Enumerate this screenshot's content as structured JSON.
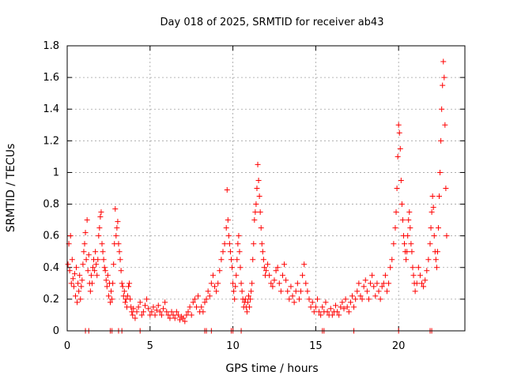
{
  "chart_data": {
    "type": "scatter",
    "title": "Day 018 of 2025, SRMTID for receiver ab43",
    "xlabel": "GPS time / hours",
    "ylabel": "SRMTID / TECUs",
    "xlim": [
      0,
      24
    ],
    "ylim": [
      0,
      1.8
    ],
    "xticks": [
      0,
      5,
      10,
      15,
      20
    ],
    "xtick_labels": [
      "0",
      "5",
      "10",
      "15",
      "20"
    ],
    "yticks": [
      0,
      0.2,
      0.4,
      0.6,
      0.8,
      1.0,
      1.2,
      1.4,
      1.6,
      1.8
    ],
    "ytick_labels": [
      "0",
      "0.2",
      "0.4",
      "0.6",
      "0.8",
      "1",
      "1.2",
      "1.4",
      "1.6",
      "1.8"
    ],
    "grid": true,
    "marker": "plus",
    "marker_color": "#ff0000",
    "series": [
      {
        "name": "SRMTID",
        "points": [
          [
            0.05,
            0.42
          ],
          [
            0.1,
            0.55
          ],
          [
            0.15,
            0.38
          ],
          [
            0.2,
            0.6
          ],
          [
            0.25,
            0.3
          ],
          [
            0.3,
            0.45
          ],
          [
            0.35,
            0.33
          ],
          [
            0.4,
            0.28
          ],
          [
            0.45,
            0.36
          ],
          [
            0.5,
            0.22
          ],
          [
            0.55,
            0.4
          ],
          [
            0.6,
            0.18
          ],
          [
            0.65,
            0.3
          ],
          [
            0.7,
            0.25
          ],
          [
            0.75,
            0.35
          ],
          [
            0.8,
            0.2
          ],
          [
            0.85,
            0.28
          ],
          [
            0.9,
            0.32
          ],
          [
            0.95,
            0.42
          ],
          [
            1.0,
            0.5
          ],
          [
            1.05,
            0.55
          ],
          [
            1.1,
            0.62
          ],
          [
            1.15,
            0.45
          ],
          [
            1.2,
            0.7
          ],
          [
            1.25,
            0.38
          ],
          [
            1.3,
            0.48
          ],
          [
            1.35,
            0.3
          ],
          [
            1.4,
            0.25
          ],
          [
            1.45,
            0.35
          ],
          [
            1.5,
            0.3
          ],
          [
            1.55,
            0.4
          ],
          [
            1.6,
            0.45
          ],
          [
            1.65,
            0.38
          ],
          [
            1.7,
            0.5
          ],
          [
            1.75,
            0.42
          ],
          [
            1.8,
            0.35
          ],
          [
            1.85,
            0.45
          ],
          [
            1.9,
            0.6
          ],
          [
            1.95,
            0.65
          ],
          [
            2.0,
            0.72
          ],
          [
            2.05,
            0.75
          ],
          [
            2.1,
            0.55
          ],
          [
            2.15,
            0.5
          ],
          [
            2.2,
            0.45
          ],
          [
            2.25,
            0.4
          ],
          [
            2.3,
            0.38
          ],
          [
            2.35,
            0.32
          ],
          [
            2.4,
            0.28
          ],
          [
            2.45,
            0.35
          ],
          [
            2.5,
            0.22
          ],
          [
            2.55,
            0.3
          ],
          [
            2.6,
            0.18
          ],
          [
            2.65,
            0.25
          ],
          [
            2.7,
            0.2
          ],
          [
            2.75,
            0.3
          ],
          [
            2.8,
            0.42
          ],
          [
            2.85,
            0.55
          ],
          [
            2.9,
            0.77
          ],
          [
            2.95,
            0.6
          ],
          [
            3.0,
            0.65
          ],
          [
            3.05,
            0.69
          ],
          [
            3.1,
            0.55
          ],
          [
            3.15,
            0.5
          ],
          [
            3.2,
            0.45
          ],
          [
            3.25,
            0.38
          ],
          [
            3.3,
            0.3
          ],
          [
            3.35,
            0.28
          ],
          [
            3.4,
            0.22
          ],
          [
            3.45,
            0.25
          ],
          [
            3.5,
            0.18
          ],
          [
            3.55,
            0.2
          ],
          [
            3.6,
            0.15
          ],
          [
            3.65,
            0.22
          ],
          [
            3.7,
            0.28
          ],
          [
            3.75,
            0.3
          ],
          [
            3.8,
            0.2
          ],
          [
            3.85,
            0.15
          ],
          [
            3.9,
            0.12
          ],
          [
            3.95,
            0.1
          ],
          [
            4.0,
            0.14
          ],
          [
            4.1,
            0.08
          ],
          [
            4.2,
            0.12
          ],
          [
            4.3,
            0.15
          ],
          [
            4.4,
            0.18
          ],
          [
            4.5,
            0.1
          ],
          [
            4.6,
            0.12
          ],
          [
            4.7,
            0.16
          ],
          [
            4.8,
            0.2
          ],
          [
            4.9,
            0.14
          ],
          [
            5.0,
            0.1
          ],
          [
            5.1,
            0.12
          ],
          [
            5.2,
            0.15
          ],
          [
            5.3,
            0.1
          ],
          [
            5.4,
            0.13
          ],
          [
            5.5,
            0.16
          ],
          [
            5.6,
            0.12
          ],
          [
            5.7,
            0.1
          ],
          [
            5.8,
            0.14
          ],
          [
            5.9,
            0.18
          ],
          [
            6.0,
            0.12
          ],
          [
            6.1,
            0.1
          ],
          [
            6.2,
            0.08
          ],
          [
            6.3,
            0.12
          ],
          [
            6.4,
            0.1
          ],
          [
            6.5,
            0.08
          ],
          [
            6.6,
            0.12
          ],
          [
            6.7,
            0.1
          ],
          [
            6.8,
            0.07
          ],
          [
            6.9,
            0.09
          ],
          [
            7.0,
            0.08
          ],
          [
            7.1,
            0.06
          ],
          [
            7.2,
            0.1
          ],
          [
            7.3,
            0.12
          ],
          [
            7.4,
            0.15
          ],
          [
            7.5,
            0.1
          ],
          [
            7.6,
            0.18
          ],
          [
            7.7,
            0.2
          ],
          [
            7.8,
            0.15
          ],
          [
            7.9,
            0.22
          ],
          [
            8.0,
            0.12
          ],
          [
            8.1,
            0.15
          ],
          [
            8.2,
            0.12
          ],
          [
            8.3,
            0.18
          ],
          [
            8.4,
            0.2
          ],
          [
            8.5,
            0.25
          ],
          [
            8.6,
            0.22
          ],
          [
            8.7,
            0.3
          ],
          [
            8.8,
            0.35
          ],
          [
            8.9,
            0.28
          ],
          [
            9.0,
            0.25
          ],
          [
            9.1,
            0.3
          ],
          [
            9.2,
            0.38
          ],
          [
            9.3,
            0.45
          ],
          [
            9.4,
            0.5
          ],
          [
            9.5,
            0.55
          ],
          [
            9.6,
            0.65
          ],
          [
            9.65,
            0.89
          ],
          [
            9.7,
            0.7
          ],
          [
            9.75,
            0.6
          ],
          [
            9.8,
            0.55
          ],
          [
            9.85,
            0.5
          ],
          [
            9.9,
            0.45
          ],
          [
            9.95,
            0.4
          ],
          [
            10.0,
            0.3
          ],
          [
            10.05,
            0.25
          ],
          [
            10.1,
            0.2
          ],
          [
            10.15,
            0.28
          ],
          [
            10.2,
            0.35
          ],
          [
            10.25,
            0.45
          ],
          [
            10.3,
            0.55
          ],
          [
            10.35,
            0.6
          ],
          [
            10.4,
            0.5
          ],
          [
            10.45,
            0.4
          ],
          [
            10.5,
            0.3
          ],
          [
            10.55,
            0.25
          ],
          [
            10.6,
            0.2
          ],
          [
            10.65,
            0.15
          ],
          [
            10.7,
            0.18
          ],
          [
            10.75,
            0.2
          ],
          [
            10.8,
            0.15
          ],
          [
            10.85,
            0.12
          ],
          [
            10.9,
            0.18
          ],
          [
            10.95,
            0.22
          ],
          [
            11.0,
            0.15
          ],
          [
            11.05,
            0.2
          ],
          [
            11.1,
            0.25
          ],
          [
            11.15,
            0.3
          ],
          [
            11.2,
            0.45
          ],
          [
            11.25,
            0.55
          ],
          [
            11.3,
            0.7
          ],
          [
            11.35,
            0.75
          ],
          [
            11.4,
            0.8
          ],
          [
            11.45,
            0.9
          ],
          [
            11.5,
            1.05
          ],
          [
            11.55,
            0.95
          ],
          [
            11.6,
            0.85
          ],
          [
            11.65,
            0.75
          ],
          [
            11.7,
            0.65
          ],
          [
            11.75,
            0.55
          ],
          [
            11.8,
            0.5
          ],
          [
            11.85,
            0.45
          ],
          [
            11.9,
            0.4
          ],
          [
            11.95,
            0.35
          ],
          [
            12.0,
            0.38
          ],
          [
            12.1,
            0.42
          ],
          [
            12.2,
            0.35
          ],
          [
            12.3,
            0.3
          ],
          [
            12.4,
            0.28
          ],
          [
            12.5,
            0.32
          ],
          [
            12.6,
            0.38
          ],
          [
            12.7,
            0.4
          ],
          [
            12.8,
            0.3
          ],
          [
            12.9,
            0.25
          ],
          [
            13.0,
            0.35
          ],
          [
            13.1,
            0.42
          ],
          [
            13.2,
            0.32
          ],
          [
            13.3,
            0.25
          ],
          [
            13.4,
            0.2
          ],
          [
            13.5,
            0.28
          ],
          [
            13.6,
            0.22
          ],
          [
            13.7,
            0.18
          ],
          [
            13.8,
            0.25
          ],
          [
            13.9,
            0.3
          ],
          [
            14.0,
            0.2
          ],
          [
            14.1,
            0.25
          ],
          [
            14.2,
            0.35
          ],
          [
            14.3,
            0.42
          ],
          [
            14.4,
            0.3
          ],
          [
            14.5,
            0.25
          ],
          [
            14.6,
            0.2
          ],
          [
            14.7,
            0.15
          ],
          [
            14.8,
            0.18
          ],
          [
            14.9,
            0.12
          ],
          [
            15.0,
            0.15
          ],
          [
            15.1,
            0.2
          ],
          [
            15.2,
            0.12
          ],
          [
            15.3,
            0.1
          ],
          [
            15.4,
            0.15
          ],
          [
            15.5,
            0.12
          ],
          [
            15.6,
            0.18
          ],
          [
            15.7,
            0.12
          ],
          [
            15.8,
            0.1
          ],
          [
            15.9,
            0.14
          ],
          [
            16.0,
            0.1
          ],
          [
            16.1,
            0.12
          ],
          [
            16.2,
            0.16
          ],
          [
            16.3,
            0.12
          ],
          [
            16.4,
            0.1
          ],
          [
            16.5,
            0.15
          ],
          [
            16.6,
            0.18
          ],
          [
            16.7,
            0.14
          ],
          [
            16.8,
            0.2
          ],
          [
            16.9,
            0.15
          ],
          [
            17.0,
            0.12
          ],
          [
            17.1,
            0.18
          ],
          [
            17.2,
            0.22
          ],
          [
            17.3,
            0.15
          ],
          [
            17.4,
            0.2
          ],
          [
            17.5,
            0.25
          ],
          [
            17.6,
            0.3
          ],
          [
            17.7,
            0.22
          ],
          [
            17.8,
            0.2
          ],
          [
            17.9,
            0.28
          ],
          [
            18.0,
            0.32
          ],
          [
            18.1,
            0.25
          ],
          [
            18.2,
            0.2
          ],
          [
            18.3,
            0.3
          ],
          [
            18.4,
            0.35
          ],
          [
            18.5,
            0.28
          ],
          [
            18.6,
            0.22
          ],
          [
            18.7,
            0.3
          ],
          [
            18.8,
            0.25
          ],
          [
            18.9,
            0.2
          ],
          [
            19.0,
            0.28
          ],
          [
            19.1,
            0.3
          ],
          [
            19.2,
            0.35
          ],
          [
            19.3,
            0.25
          ],
          [
            19.4,
            0.3
          ],
          [
            19.5,
            0.4
          ],
          [
            19.6,
            0.45
          ],
          [
            19.7,
            0.55
          ],
          [
            19.8,
            0.65
          ],
          [
            19.85,
            0.75
          ],
          [
            19.9,
            0.9
          ],
          [
            19.95,
            1.1
          ],
          [
            20.0,
            1.3
          ],
          [
            20.05,
            1.25
          ],
          [
            20.1,
            1.15
          ],
          [
            20.15,
            0.95
          ],
          [
            20.2,
            0.8
          ],
          [
            20.25,
            0.7
          ],
          [
            20.3,
            0.6
          ],
          [
            20.35,
            0.55
          ],
          [
            20.4,
            0.5
          ],
          [
            20.45,
            0.45
          ],
          [
            20.5,
            0.5
          ],
          [
            20.55,
            0.6
          ],
          [
            20.6,
            0.7
          ],
          [
            20.65,
            0.75
          ],
          [
            20.7,
            0.65
          ],
          [
            20.75,
            0.55
          ],
          [
            20.8,
            0.5
          ],
          [
            20.85,
            0.4
          ],
          [
            20.9,
            0.35
          ],
          [
            20.95,
            0.3
          ],
          [
            21.0,
            0.25
          ],
          [
            21.1,
            0.3
          ],
          [
            21.2,
            0.4
          ],
          [
            21.3,
            0.35
          ],
          [
            21.4,
            0.3
          ],
          [
            21.5,
            0.28
          ],
          [
            21.6,
            0.32
          ],
          [
            21.7,
            0.38
          ],
          [
            21.8,
            0.45
          ],
          [
            21.9,
            0.55
          ],
          [
            21.95,
            0.65
          ],
          [
            22.0,
            0.75
          ],
          [
            22.05,
            0.85
          ],
          [
            22.1,
            0.78
          ],
          [
            22.15,
            0.6
          ],
          [
            22.2,
            0.5
          ],
          [
            22.25,
            0.45
          ],
          [
            22.3,
            0.4
          ],
          [
            22.35,
            0.5
          ],
          [
            22.4,
            0.65
          ],
          [
            22.45,
            0.85
          ],
          [
            22.5,
            1.0
          ],
          [
            22.55,
            1.2
          ],
          [
            22.6,
            1.4
          ],
          [
            22.65,
            1.55
          ],
          [
            22.7,
            1.7
          ],
          [
            22.75,
            1.6
          ],
          [
            22.8,
            1.3
          ],
          [
            22.85,
            0.9
          ],
          [
            22.9,
            0.6
          ]
        ]
      }
    ],
    "axis_markers_x": [
      1.1,
      1.3,
      2.6,
      2.7,
      3.1,
      3.3,
      4.4,
      8.3,
      8.4,
      8.7,
      9.9,
      10.0,
      10.5,
      15.4,
      15.5,
      17.3,
      20.0,
      21.9,
      22.0
    ]
  }
}
